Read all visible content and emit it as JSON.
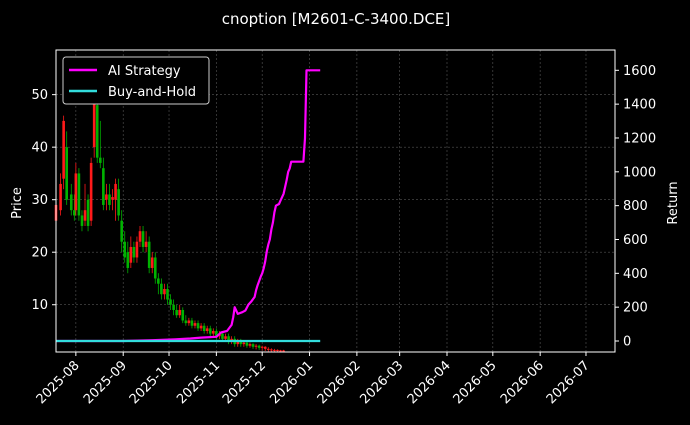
{
  "chart_data": {
    "type": "line",
    "title": "cnoption [M2601-C-3400.DCE]",
    "xlabel": "",
    "ylabel_left": "Price",
    "ylabel_right": "Return",
    "x_ticks": [
      "2025-08",
      "2025-09",
      "2025-10",
      "2025-11",
      "2025-12",
      "2026-01",
      "2026-02",
      "2026-03",
      "2026-04",
      "2026-05",
      "2026-06",
      "2026-07"
    ],
    "xlim": [
      "2025-07-19",
      "2026-07-20"
    ],
    "ylim_left": [
      1,
      58.5
    ],
    "ylim_right": [
      -65,
      1720
    ],
    "y_ticks_left": [
      10,
      20,
      30,
      40,
      50
    ],
    "y_ticks_right": [
      0,
      200,
      400,
      600,
      800,
      1000,
      1200,
      1400,
      1600
    ],
    "grid": true,
    "legend_position": "top-left",
    "colors": {
      "background": "#000000",
      "up": "#ff1a1a",
      "down": "#00b300",
      "ai": "#ff00ff",
      "bh": "#33dddd",
      "grid": "#555555"
    },
    "series": [
      {
        "name": "AI Strategy",
        "axis": "right",
        "points": [
          [
            "2025-07-19",
            0
          ],
          [
            "2025-09-01",
            0
          ],
          [
            "2025-09-20",
            5
          ],
          [
            "2025-10-05",
            10
          ],
          [
            "2025-10-15",
            15
          ],
          [
            "2025-10-22",
            20
          ],
          [
            "2025-11-01",
            25
          ],
          [
            "2025-11-04",
            50
          ],
          [
            "2025-11-08",
            60
          ],
          [
            "2025-11-11",
            95
          ],
          [
            "2025-11-12",
            140
          ],
          [
            "2025-11-13",
            200
          ],
          [
            "2025-11-15",
            160
          ],
          [
            "2025-11-18",
            170
          ],
          [
            "2025-11-20",
            180
          ],
          [
            "2025-11-22",
            215
          ],
          [
            "2025-11-24",
            235
          ],
          [
            "2025-11-26",
            260
          ],
          [
            "2025-11-27",
            300
          ],
          [
            "2025-11-28",
            330
          ],
          [
            "2025-11-30",
            380
          ],
          [
            "2025-12-01",
            400
          ],
          [
            "2025-12-02",
            430
          ],
          [
            "2025-12-03",
            470
          ],
          [
            "2025-12-04",
            530
          ],
          [
            "2025-12-05",
            570
          ],
          [
            "2025-12-06",
            600
          ],
          [
            "2025-12-07",
            660
          ],
          [
            "2025-12-08",
            700
          ],
          [
            "2025-12-09",
            760
          ],
          [
            "2025-12-10",
            800
          ],
          [
            "2025-12-12",
            810
          ],
          [
            "2025-12-13",
            830
          ],
          [
            "2025-12-15",
            870
          ],
          [
            "2025-12-17",
            950
          ],
          [
            "2025-12-18",
            1000
          ],
          [
            "2025-12-19",
            1020
          ],
          [
            "2025-12-20",
            1060
          ],
          [
            "2025-12-25",
            1060
          ],
          [
            "2025-12-28",
            1060
          ],
          [
            "2025-12-29",
            1200
          ],
          [
            "2025-12-30",
            1600
          ],
          [
            "2026-01-08",
            1600
          ]
        ]
      },
      {
        "name": "Buy-and-Hold",
        "axis": "right",
        "points": [
          [
            "2025-07-19",
            0
          ],
          [
            "2026-01-08",
            0
          ]
        ]
      }
    ],
    "candles": [
      [
        "2025-07-19",
        26,
        29,
        25,
        30,
        "up"
      ],
      [
        "2025-07-22",
        28,
        33,
        27,
        35,
        "up"
      ],
      [
        "2025-07-24",
        34,
        45,
        32,
        46,
        "up"
      ],
      [
        "2025-07-26",
        40,
        30,
        29,
        43,
        "down"
      ],
      [
        "2025-07-29",
        31,
        28,
        27,
        33,
        "down"
      ],
      [
        "2025-07-31",
        28,
        27,
        26,
        31,
        "down"
      ],
      [
        "2025-08-01",
        28,
        35,
        27,
        37,
        "up"
      ],
      [
        "2025-08-03",
        35,
        27,
        26,
        36,
        "down"
      ],
      [
        "2025-08-05",
        27,
        25,
        24,
        28,
        "down"
      ],
      [
        "2025-08-07",
        26,
        28,
        25,
        33,
        "up"
      ],
      [
        "2025-08-09",
        30,
        25,
        24,
        31,
        "down"
      ],
      [
        "2025-08-11",
        26,
        37,
        25,
        38,
        "up"
      ],
      [
        "2025-08-13",
        40,
        50,
        38,
        53,
        "up"
      ],
      [
        "2025-08-15",
        48,
        38,
        37,
        50,
        "down"
      ],
      [
        "2025-08-17",
        38,
        37,
        36,
        45,
        "down"
      ],
      [
        "2025-08-19",
        36,
        29,
        28,
        38,
        "down"
      ],
      [
        "2025-08-21",
        30,
        31,
        28,
        33,
        "up"
      ],
      [
        "2025-08-23",
        31,
        29,
        28,
        33,
        "down"
      ],
      [
        "2025-08-25",
        30,
        30.5,
        28,
        32,
        "up"
      ],
      [
        "2025-08-27",
        30,
        33,
        26,
        34,
        "up"
      ],
      [
        "2025-08-29",
        32,
        27,
        26,
        34,
        "down"
      ],
      [
        "2025-08-31",
        26,
        22,
        20,
        28,
        "down"
      ],
      [
        "2025-09-02",
        22,
        19,
        18,
        24,
        "down"
      ],
      [
        "2025-09-04",
        20,
        17,
        16,
        22,
        "down"
      ],
      [
        "2025-09-06",
        18,
        21,
        17,
        23,
        "up"
      ],
      [
        "2025-09-08",
        21,
        19,
        18,
        22,
        "down"
      ],
      [
        "2025-09-10",
        19,
        22,
        18,
        23,
        "up"
      ],
      [
        "2025-09-12",
        22,
        24,
        21,
        25,
        "up"
      ],
      [
        "2025-09-14",
        24,
        21,
        20,
        25,
        "down"
      ],
      [
        "2025-09-16",
        21,
        22,
        20,
        24,
        "up"
      ],
      [
        "2025-09-18",
        22,
        17,
        16,
        23,
        "down"
      ],
      [
        "2025-09-20",
        17,
        19,
        16,
        20,
        "up"
      ],
      [
        "2025-09-22",
        19,
        15,
        14,
        20,
        "down"
      ],
      [
        "2025-09-24",
        15,
        14,
        12,
        16,
        "down"
      ],
      [
        "2025-09-26",
        14,
        12,
        11,
        15,
        "down"
      ],
      [
        "2025-09-28",
        12,
        13,
        11,
        14,
        "up"
      ],
      [
        "2025-09-30",
        13,
        11,
        10,
        14,
        "down"
      ],
      [
        "2025-10-02",
        11,
        10,
        9,
        12,
        "down"
      ],
      [
        "2025-10-04",
        10,
        9,
        8,
        11,
        "down"
      ],
      [
        "2025-10-06",
        9,
        8,
        7.5,
        10,
        "down"
      ],
      [
        "2025-10-08",
        8,
        9,
        7.5,
        10,
        "up"
      ],
      [
        "2025-10-10",
        9,
        7,
        6.5,
        9.5,
        "down"
      ],
      [
        "2025-10-12",
        7,
        6.5,
        6,
        8,
        "down"
      ],
      [
        "2025-10-14",
        6.5,
        7,
        6,
        7.5,
        "up"
      ],
      [
        "2025-10-16",
        7,
        6,
        5.5,
        7.5,
        "down"
      ],
      [
        "2025-10-18",
        6,
        6.5,
        5.5,
        7,
        "up"
      ],
      [
        "2025-10-20",
        6.5,
        5.5,
        5,
        7,
        "down"
      ],
      [
        "2025-10-22",
        5.5,
        6,
        5,
        6.5,
        "up"
      ],
      [
        "2025-10-24",
        6,
        5,
        4.5,
        6.5,
        "down"
      ],
      [
        "2025-10-26",
        5,
        5.5,
        4.5,
        6,
        "up"
      ],
      [
        "2025-10-28",
        5.5,
        4.5,
        4,
        6,
        "down"
      ],
      [
        "2025-10-30",
        4.5,
        5,
        4,
        5.5,
        "up"
      ],
      [
        "2025-11-01",
        5,
        4,
        3.5,
        5.5,
        "down"
      ],
      [
        "2025-11-03",
        4,
        4.5,
        3.5,
        5,
        "up"
      ],
      [
        "2025-11-05",
        4.5,
        3.5,
        3,
        5,
        "down"
      ],
      [
        "2025-11-07",
        3.5,
        4,
        3,
        4.5,
        "up"
      ],
      [
        "2025-11-09",
        4,
        3,
        2.5,
        4.5,
        "down"
      ],
      [
        "2025-11-11",
        3,
        3.5,
        2.5,
        4,
        "up"
      ],
      [
        "2025-11-13",
        3.5,
        2.5,
        2,
        4,
        "down"
      ],
      [
        "2025-11-15",
        2.5,
        3,
        2,
        3.5,
        "up"
      ],
      [
        "2025-11-17",
        3,
        2.5,
        2,
        3.5,
        "down"
      ],
      [
        "2025-11-19",
        2.5,
        2.8,
        2,
        3,
        "up"
      ],
      [
        "2025-11-21",
        2.8,
        2.2,
        1.8,
        3,
        "down"
      ],
      [
        "2025-11-23",
        2.2,
        2.5,
        1.8,
        2.8,
        "up"
      ],
      [
        "2025-11-25",
        2.5,
        2,
        1.6,
        2.7,
        "down"
      ],
      [
        "2025-11-27",
        2,
        2.2,
        1.5,
        2.5,
        "up"
      ],
      [
        "2025-11-29",
        2.2,
        1.8,
        1.4,
        2.4,
        "down"
      ],
      [
        "2025-12-01",
        1.8,
        2,
        1.3,
        2.2,
        "up"
      ],
      [
        "2025-12-03",
        2,
        1.6,
        1.2,
        2.1,
        "up"
      ],
      [
        "2025-12-05",
        1.6,
        1.5,
        1.1,
        1.9,
        "up"
      ],
      [
        "2025-12-07",
        1.5,
        1.3,
        1,
        1.7,
        "up"
      ],
      [
        "2025-12-09",
        1.3,
        1.4,
        1,
        1.6,
        "up"
      ],
      [
        "2025-12-11",
        1.4,
        1.2,
        1,
        1.5,
        "up"
      ],
      [
        "2025-12-13",
        1.2,
        1.3,
        1,
        1.4,
        "up"
      ],
      [
        "2025-12-15",
        1.3,
        1.1,
        1,
        1.4,
        "up"
      ]
    ]
  }
}
